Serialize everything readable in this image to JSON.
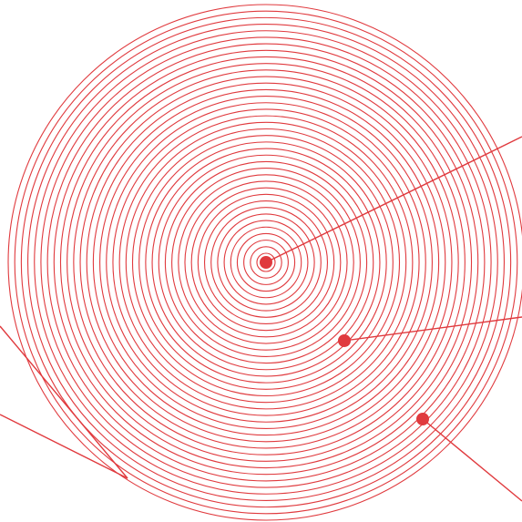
{
  "diagram": {
    "colors": {
      "stroke": "#e03a3e",
      "background": "#ffffff"
    },
    "rings": {
      "count": 39
    },
    "callouts": [
      {
        "id": "center",
        "kind": "dot-with-leader"
      },
      {
        "id": "middle",
        "kind": "dot-with-leader"
      },
      {
        "id": "outer",
        "kind": "dot-with-leader"
      }
    ],
    "edge_lines": [
      {
        "id": "left-upper"
      },
      {
        "id": "left-lower"
      }
    ]
  }
}
